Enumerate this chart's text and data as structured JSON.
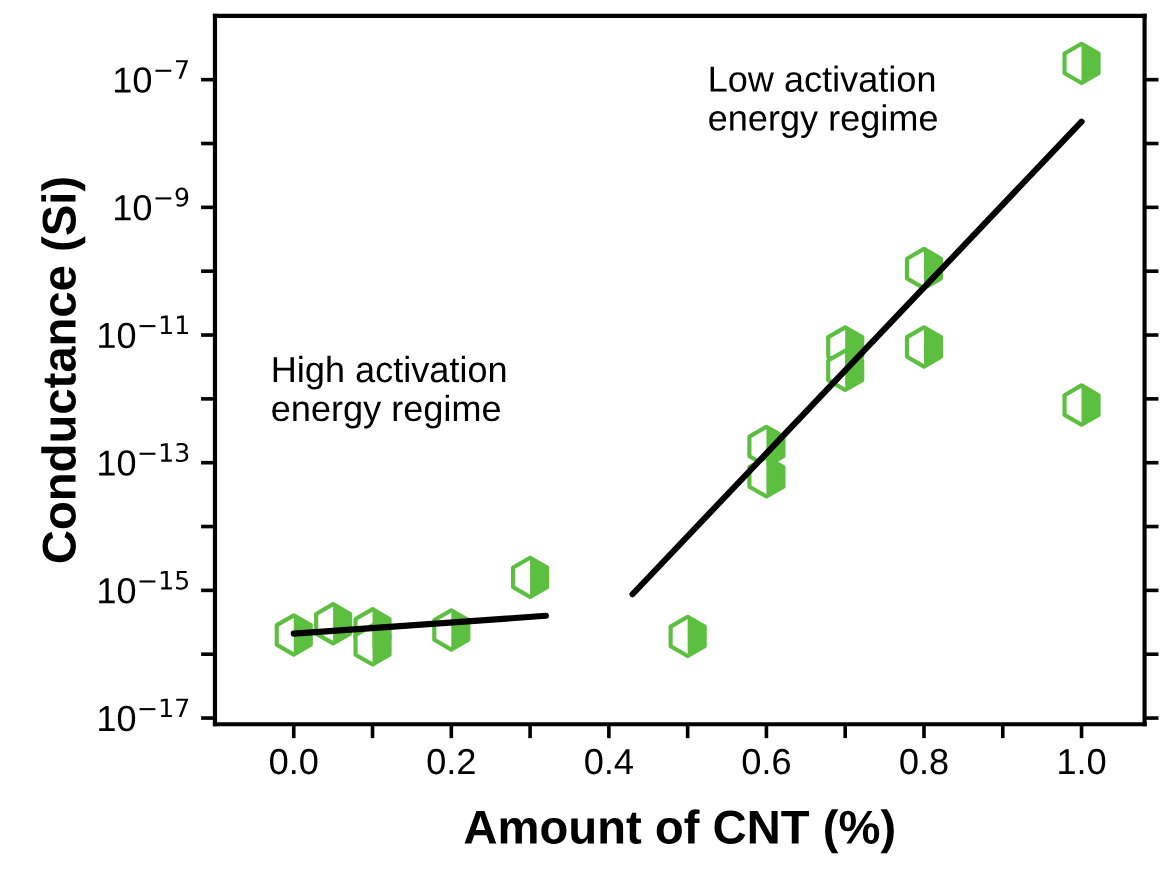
{
  "chart_data": {
    "type": "scatter",
    "xlabel": "Amount of CNT (%)",
    "ylabel": "Conductance (Si)",
    "annotations": [
      "Low activation\nenergy regime",
      "High activation\nenergy regime"
    ],
    "series": [
      {
        "type": "scatter",
        "color": "#5cbf3f",
        "x": [
          0,
          0.05,
          0.1,
          0.1,
          0.2,
          0.3,
          0.5,
          0.6,
          0.6,
          0.7,
          0.7,
          0.8,
          0.8,
          1.0,
          1.0
        ],
        "values": [
          2e-16,
          3e-16,
          2.5e-16,
          1.4e-16,
          2.4e-16,
          1.6e-15,
          1.9e-16,
          1.8e-13,
          6e-14,
          6.5e-12,
          2.8e-12,
          1.1e-10,
          6.5e-12,
          1.8e-07,
          8e-13
        ]
      },
      {
        "type": "line",
        "color": "#000000",
        "x": [
          0,
          0.32
        ],
        "values": [
          2.1e-16,
          4e-16
        ]
      },
      {
        "type": "line",
        "color": "#000000",
        "x": [
          0.43,
          1.0
        ],
        "values": [
          8.7e-16,
          2.2e-08
        ]
      }
    ],
    "xlim": [
      -0.1,
      1.08
    ],
    "xticks": [
      {
        "value": 0,
        "label": "0.0"
      },
      {
        "value": 0.1,
        "label": null
      },
      {
        "value": 0.2,
        "label": "0.2"
      },
      {
        "value": 0.3,
        "label": null
      },
      {
        "value": 0.4,
        "label": "0.4"
      },
      {
        "value": 0.5,
        "label": null
      },
      {
        "value": 0.6,
        "label": "0.6"
      },
      {
        "value": 0.7,
        "label": null
      },
      {
        "value": 0.8,
        "label": "0.8"
      },
      {
        "value": 0.9,
        "label": null
      },
      {
        "value": 1.0,
        "label": "1.0"
      }
    ],
    "log": "y",
    "ylim": [
      8e-18,
      1e-06
    ],
    "yticks": [
      {
        "value": 1e-17,
        "label": "10$^{−17}$"
      },
      {
        "value": 1e-16,
        "label": null
      },
      {
        "value": 1e-15,
        "label": "10$^{−15}$"
      },
      {
        "value": 1e-14,
        "label": null
      },
      {
        "value": 1e-13,
        "label": "10$^{−13}$"
      },
      {
        "value": 1e-12,
        "label": null
      },
      {
        "value": 1e-11,
        "label": "10$^{−11}$"
      },
      {
        "value": 1e-10,
        "label": null
      },
      {
        "value": 1e-09,
        "label": "10$^{−9}$"
      },
      {
        "value": 1e-08,
        "label": null
      },
      {
        "value": 1e-07,
        "label": "10$^{−7}$"
      }
    ],
    "grid": false,
    "legend": false
  }
}
